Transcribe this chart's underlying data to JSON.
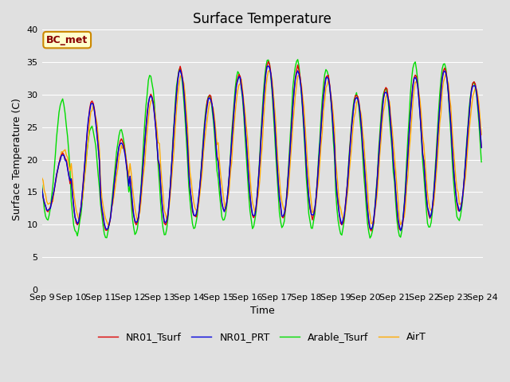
{
  "title": "Surface Temperature",
  "ylabel": "Surface Temperature (C)",
  "xlabel": "Time",
  "annotation": "BC_met",
  "ylim": [
    0,
    40
  ],
  "yticks": [
    0,
    5,
    10,
    15,
    20,
    25,
    30,
    35,
    40
  ],
  "x_tick_days": [
    9,
    10,
    11,
    12,
    13,
    14,
    15,
    16,
    17,
    18,
    19,
    20,
    21,
    22,
    23,
    24
  ],
  "legend_labels": [
    "NR01_Tsurf",
    "NR01_PRT",
    "Arable_Tsurf",
    "AirT"
  ],
  "line_colors": [
    "#dd0000",
    "#0000dd",
    "#00dd00",
    "#ffaa00"
  ],
  "background_color": "#e0e0e0",
  "plot_bg_color": "#e0e0e0",
  "grid_color": "#ffffff",
  "annotation_bg": "#ffffcc",
  "annotation_border": "#cc8800",
  "annotation_text_color": "#880000",
  "title_fontsize": 12,
  "label_fontsize": 9,
  "tick_fontsize": 8,
  "legend_fontsize": 9
}
